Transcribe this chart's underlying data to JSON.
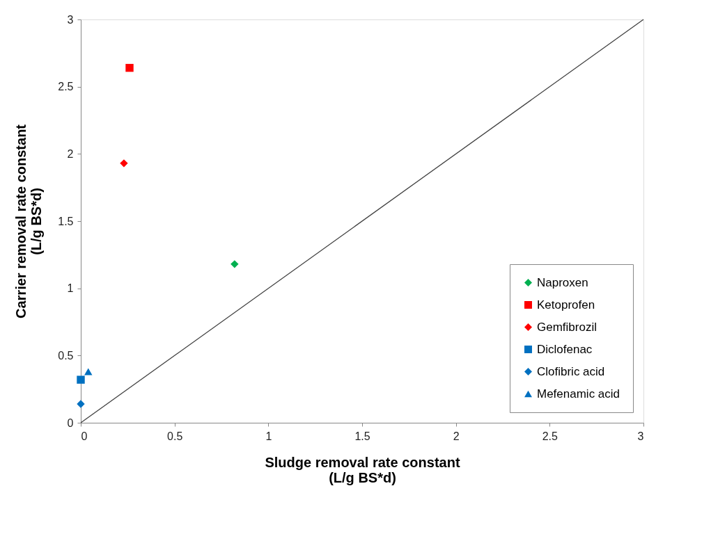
{
  "chart_data": {
    "type": "scatter",
    "xlabel": "Sludge removal rate constant\n(L/g BS*d)",
    "ylabel": "Carrier removal rate constant\n(L/g BS*d)",
    "xlim": [
      0,
      3
    ],
    "ylim": [
      0,
      3
    ],
    "xticks": [
      0,
      0.5,
      1,
      1.5,
      2,
      2.5,
      3
    ],
    "yticks": [
      0,
      0.5,
      1,
      1.5,
      2,
      2.5,
      3
    ],
    "grid": false,
    "legend": "bottom right",
    "series": [
      {
        "name": "Naproxen",
        "marker": "diamond",
        "color": "#00b050",
        "x": [
          0.82
        ],
        "values": [
          1.18
        ]
      },
      {
        "name": "Ketoprofen",
        "marker": "square",
        "color": "#ff0000",
        "x": [
          0.26
        ],
        "values": [
          2.64
        ]
      },
      {
        "name": "Gemfibrozil",
        "marker": "diamond",
        "color": "#ff0000",
        "x": [
          0.23
        ],
        "values": [
          1.93
        ]
      },
      {
        "name": "Diclofenac",
        "marker": "square",
        "color": "#0070c0",
        "x": [
          0
        ],
        "values": [
          0.32
        ]
      },
      {
        "name": "Clofibric acid",
        "marker": "diamond",
        "color": "#0070c0",
        "x": [
          0
        ],
        "values": [
          0.14
        ]
      },
      {
        "name": "Mefenamic acid",
        "marker": "triangle",
        "color": "#0070c0",
        "x": [
          0.04
        ],
        "values": [
          0.38
        ]
      },
      {
        "type": "line",
        "marker": "none",
        "line_style": "solid",
        "color": "#404040",
        "x": [
          0,
          3
        ],
        "values": [
          0,
          3
        ]
      }
    ]
  }
}
